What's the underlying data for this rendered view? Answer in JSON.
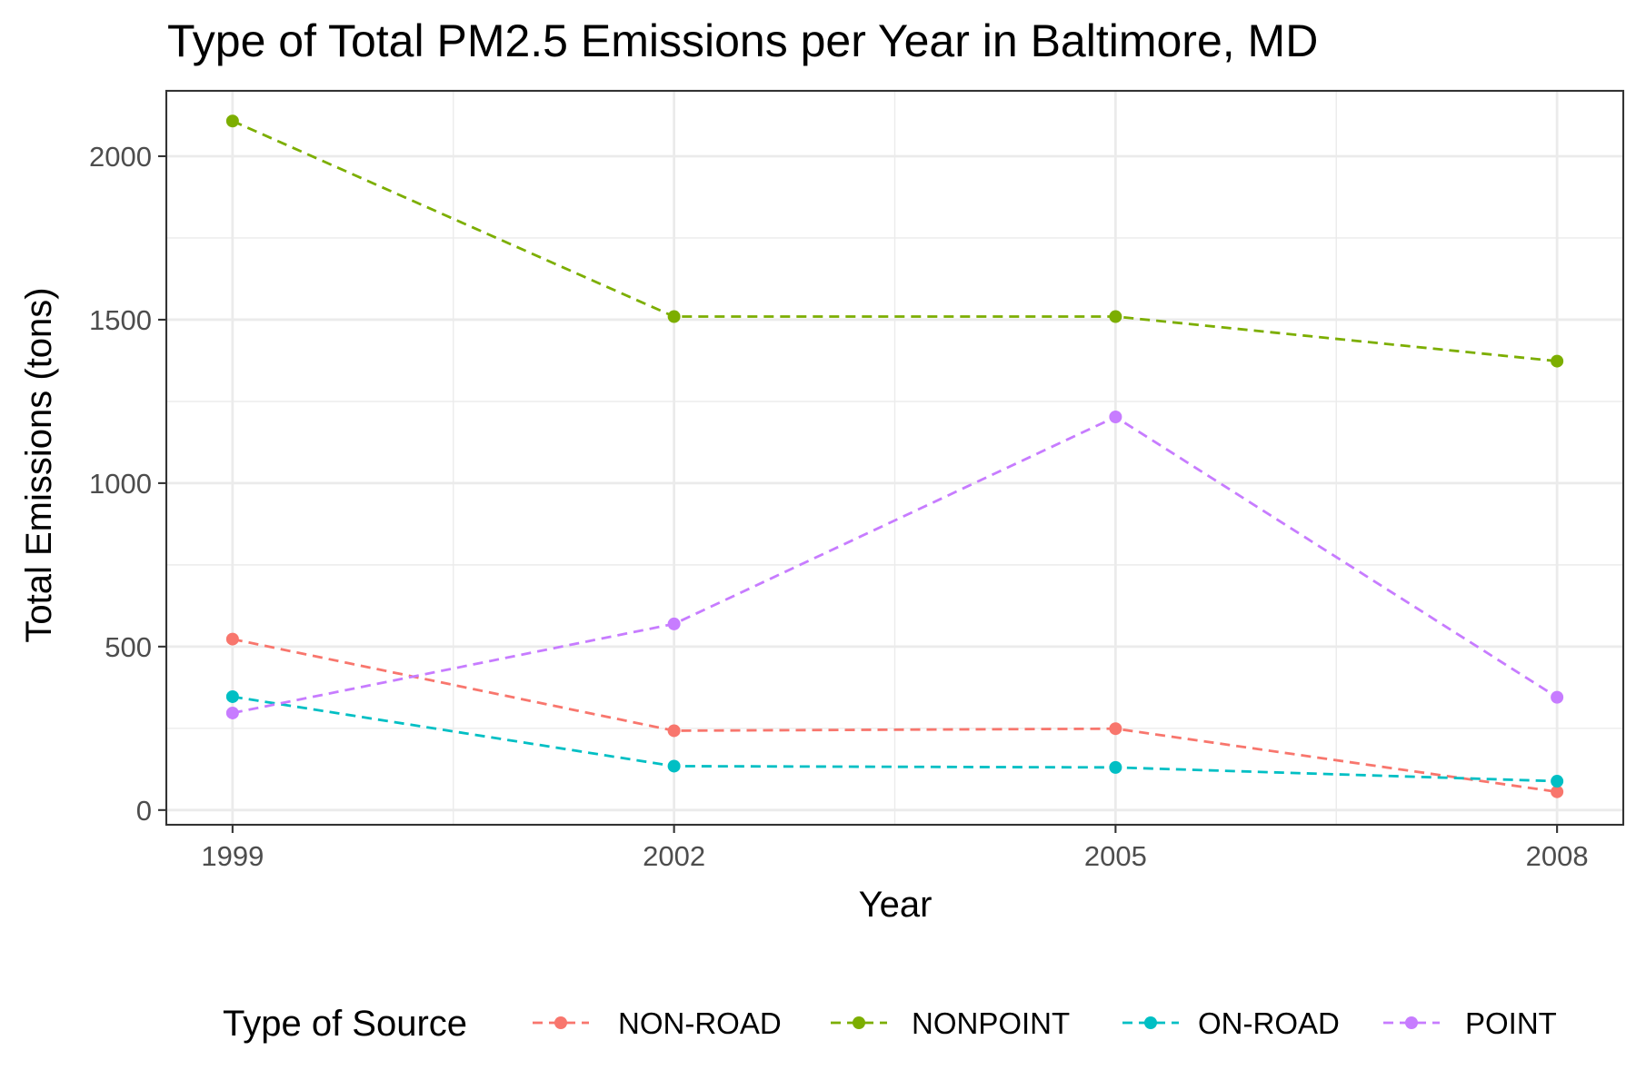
{
  "chart_data": {
    "type": "line",
    "title": "Type of Total PM2.5 Emissions per Year in Baltimore, MD",
    "xlabel": "Year",
    "ylabel": "Total Emissions (tons)",
    "x": [
      1999,
      2002,
      2005,
      2008
    ],
    "x_tick_labels": [
      "1999",
      "2002",
      "2005",
      "2008"
    ],
    "y_ticks": [
      0,
      500,
      1000,
      1500,
      2000
    ],
    "y_tick_labels": [
      "0",
      "500",
      "1000",
      "1500",
      "2000"
    ],
    "xlim": [
      1998.55,
      2008.45
    ],
    "ylim": [
      -45,
      2200
    ],
    "grid": true,
    "line_style": "dashed",
    "markers": true,
    "legend": {
      "title": "Type of Source",
      "position": "bottom"
    },
    "series": [
      {
        "name": "NON-ROAD",
        "color": "#F8766D",
        "values": [
          522.9,
          242.7,
          248.9,
          55.8
        ]
      },
      {
        "name": "NONPOINT",
        "color": "#7CAE00",
        "values": [
          2107.6,
          1509.5,
          1509.5,
          1373.2
        ]
      },
      {
        "name": "ON-ROAD",
        "color": "#00BFC4",
        "values": [
          346.8,
          134.3,
          130.4,
          88.3
        ]
      },
      {
        "name": "POINT",
        "color": "#C77CFF",
        "values": [
          296.8,
          569.3,
          1202.5,
          345.0
        ]
      }
    ]
  }
}
